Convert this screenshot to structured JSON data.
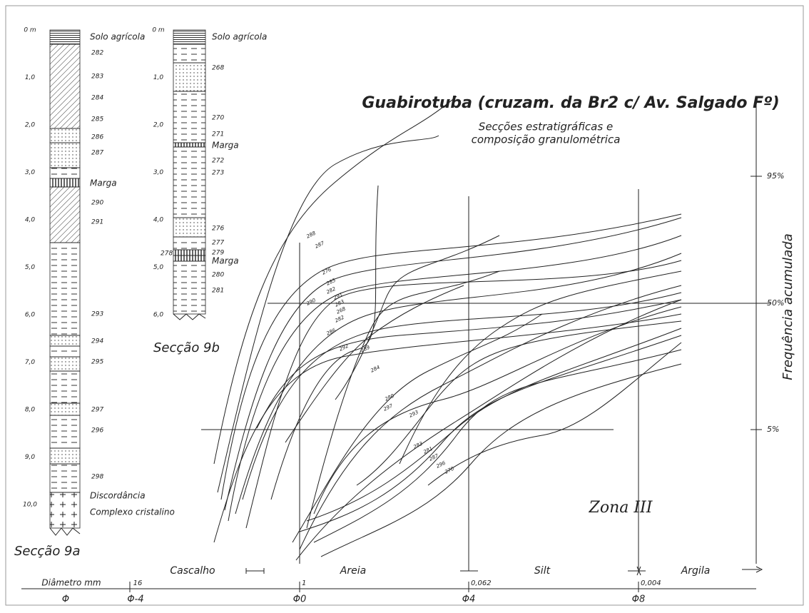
{
  "title": "Guabirotuba (cruzam. da Br2 c/ Av. Salgado Fº)",
  "subtitle": [
    "Secções estratigráficas e",
    "composição granulométrica"
  ],
  "zone": "Zona III",
  "y_axis": {
    "label": "Frequência acumulada",
    "ticks": [
      "95%",
      "50%",
      "5%"
    ]
  },
  "x_axis": {
    "classes": [
      "Cascalho",
      "Areia",
      "Silt",
      "Argila"
    ],
    "diameter_label": "Diâmetro mm",
    "diameters": [
      "16",
      "1",
      "0,062",
      "0,004"
    ],
    "phi_label": "Φ",
    "phi": [
      "Φ-4",
      "Φ0",
      "Φ4",
      "Φ8"
    ]
  },
  "section_9a": {
    "name": "Secção 9a",
    "depths": [
      "0 m",
      "1,0",
      "2,0",
      "3,0",
      "4,0",
      "5,0",
      "6,0",
      "7,0",
      "8,0",
      "9,0",
      "10,0"
    ],
    "labels": [
      "Solo agrícola",
      "282",
      "283",
      "284",
      "285",
      "286",
      "287",
      "Marga",
      "290",
      "291",
      "293",
      "294",
      "295",
      "297",
      "296",
      "298",
      "Discordância",
      "Complexo cristalino"
    ]
  },
  "section_9b": {
    "name": "Secção 9b",
    "depths": [
      "0 m",
      "1,0",
      "2,0",
      "3,0",
      "4,0",
      "5,0",
      "6,0"
    ],
    "labels": [
      "Solo agrícola",
      "268",
      "270",
      "271",
      "Marga",
      "272",
      "273",
      "276",
      "277",
      "279",
      "278",
      "Marga",
      "280",
      "281"
    ]
  },
  "curve_labels": [
    "288",
    "287",
    "276",
    "285",
    "282",
    "291",
    "290",
    "283",
    "268",
    "282",
    "286",
    "292",
    "289",
    "284",
    "280",
    "297",
    "293",
    "283",
    "281",
    "287",
    "296",
    "270"
  ]
}
